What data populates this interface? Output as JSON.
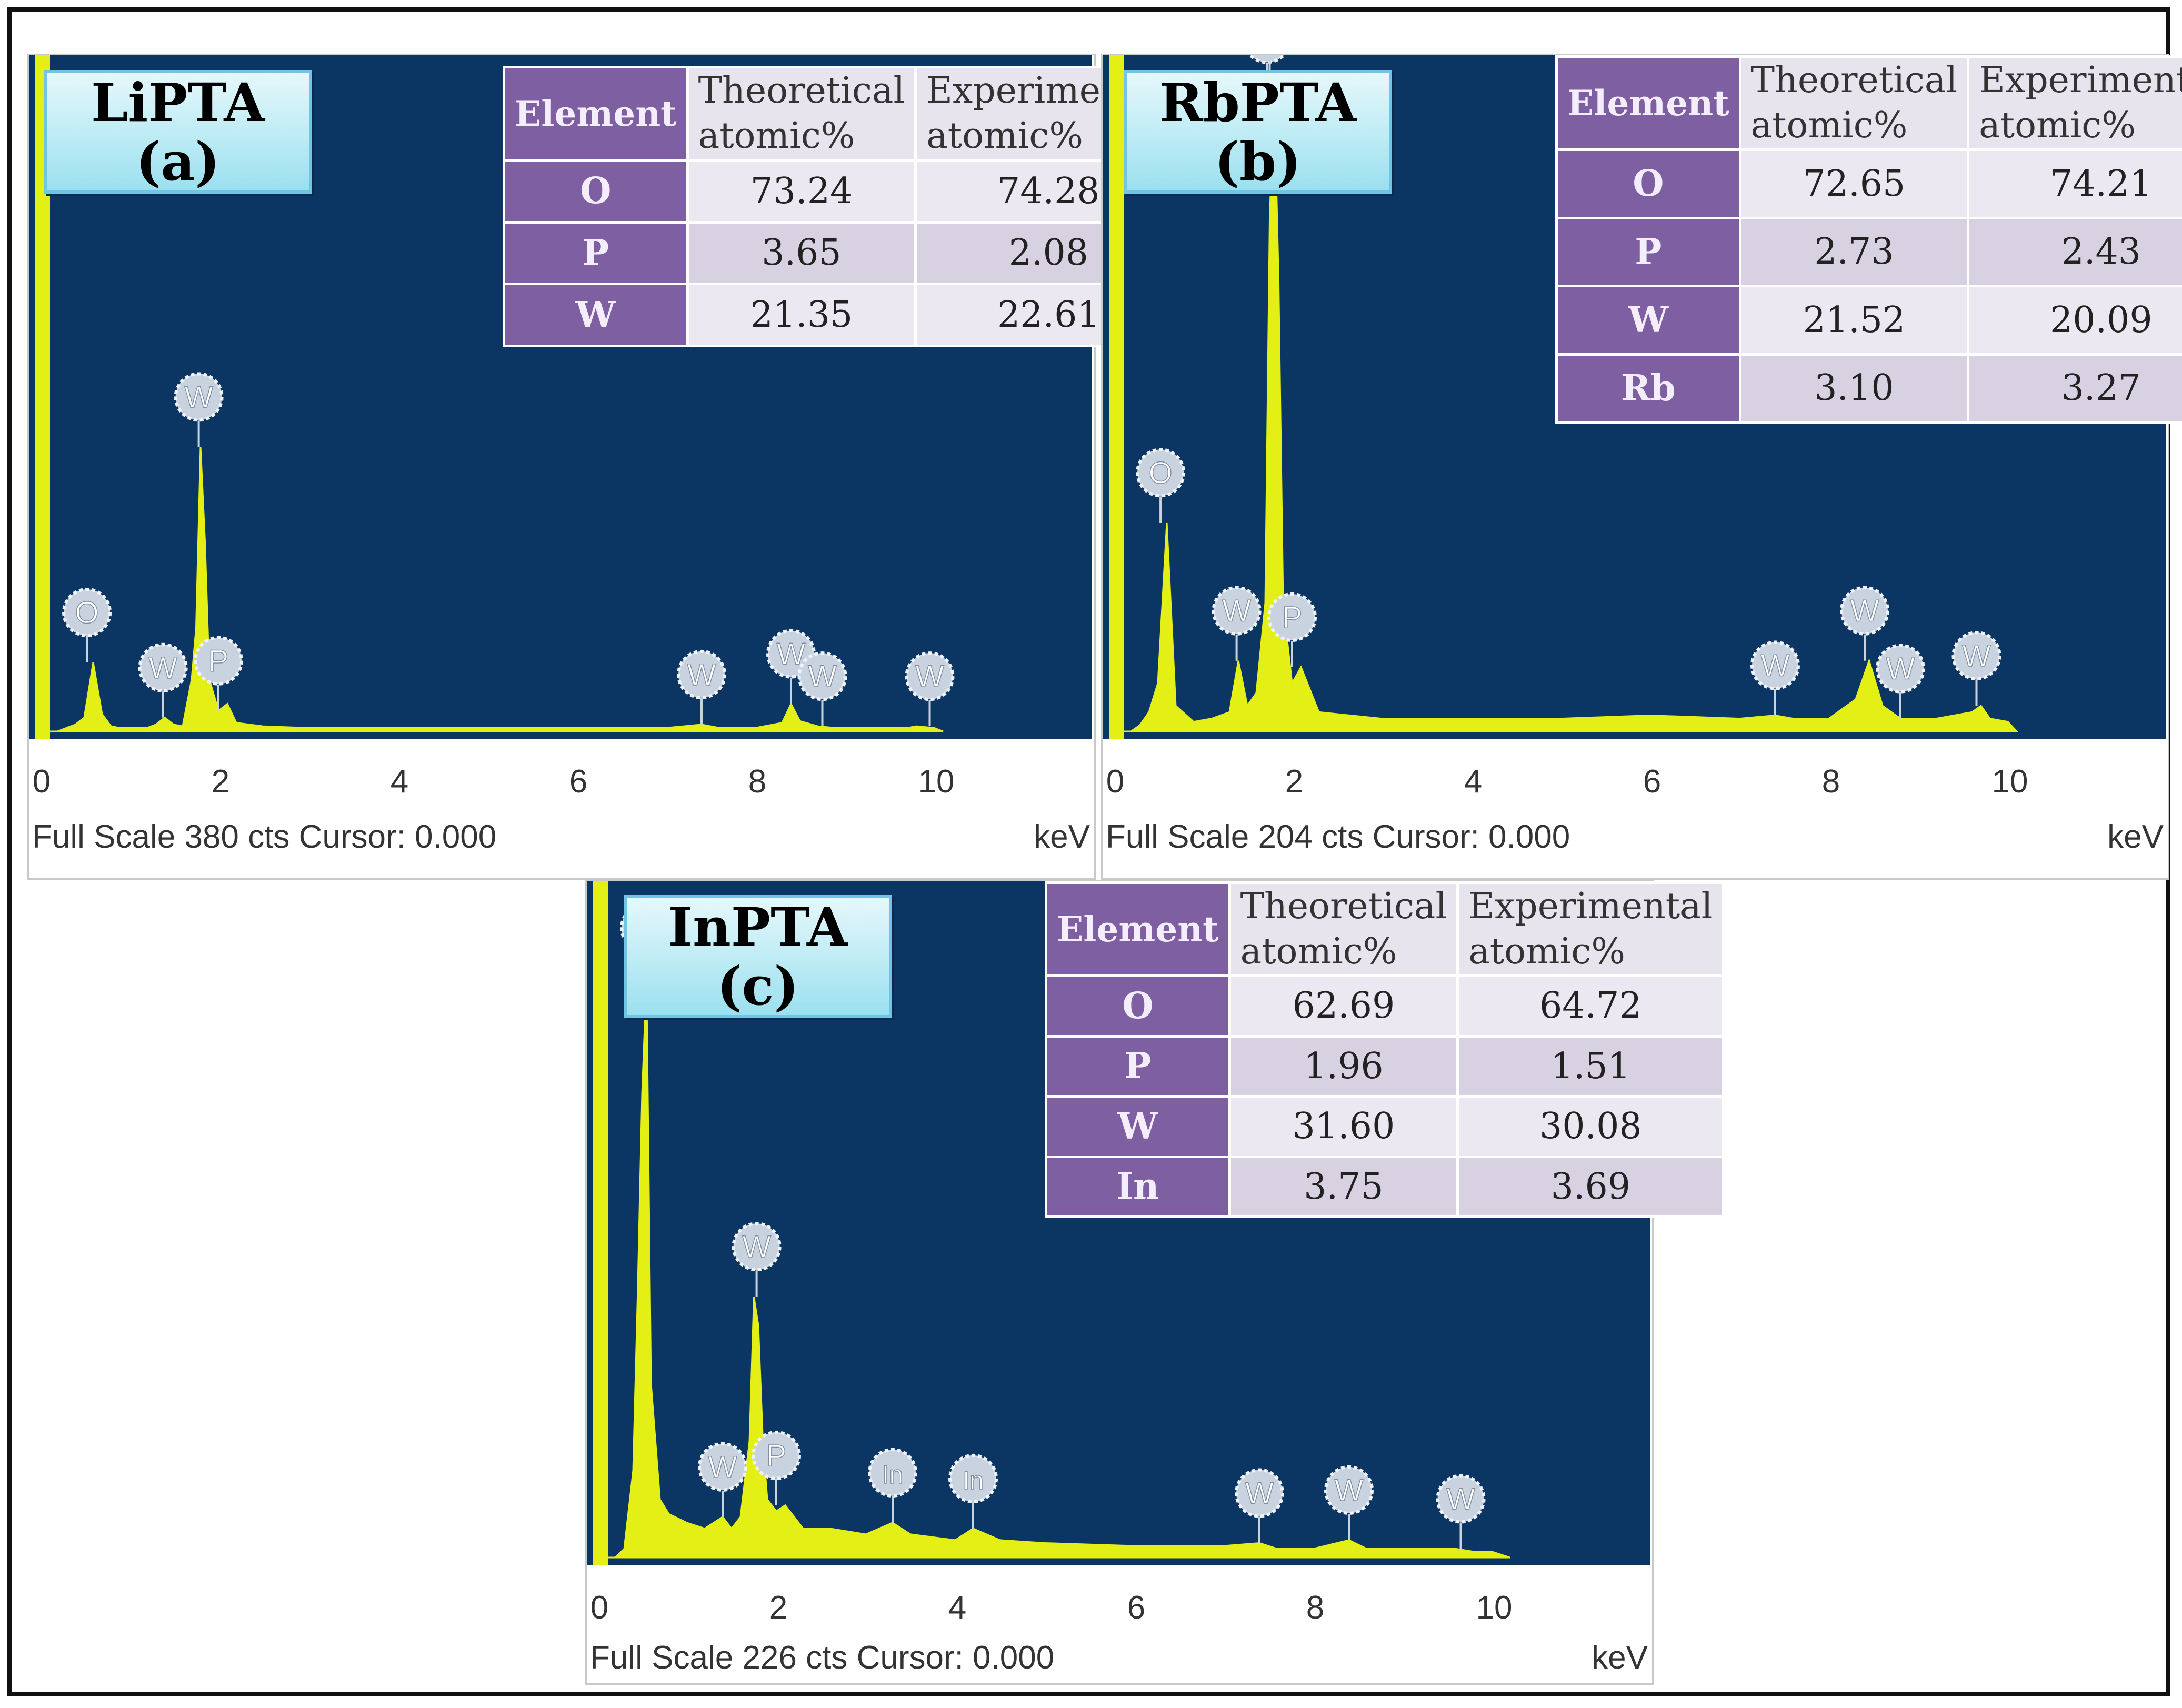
{
  "chart_data": [
    {
      "type": "table",
      "panel_title": "LiPTA",
      "panel_letter": "(a)",
      "xlabel": "keV",
      "xlim": [
        0,
        11.7
      ],
      "x_ticks": [
        "0",
        "2",
        "4",
        "6",
        "8",
        "10"
      ],
      "footer": "Full Scale 380 cts Cursor: 0.000",
      "table": {
        "headers": [
          "Element",
          "Theoretical atomic%",
          "Experimental atomic%"
        ],
        "rows": [
          [
            "O",
            "73.24",
            "74.28"
          ],
          [
            "P",
            "3.65",
            "2.08"
          ],
          [
            "W",
            "21.35",
            "22.61"
          ]
        ]
      },
      "series": [
        {
          "name": "spectrum",
          "x": [
            0.0,
            0.1,
            0.2,
            0.3,
            0.4,
            0.5,
            0.6,
            0.7,
            0.8,
            0.9,
            1.0,
            1.2,
            1.3,
            1.4,
            1.5,
            1.6,
            1.7,
            1.75,
            1.8,
            1.85,
            1.9,
            2.0,
            2.1,
            2.2,
            2.5,
            3.0,
            4.0,
            5.0,
            6.0,
            7.0,
            7.4,
            7.6,
            8.0,
            8.3,
            8.4,
            8.5,
            8.7,
            8.9,
            9.5,
            9.7,
            9.8,
            10.0,
            10.1
          ],
          "y": [
            0,
            0,
            0,
            2,
            4,
            8,
            40,
            10,
            3,
            2,
            2,
            2,
            4,
            8,
            4,
            3,
            30,
            60,
            165,
            110,
            30,
            12,
            16,
            5,
            3,
            2,
            2,
            2,
            2,
            2,
            4,
            2,
            2,
            5,
            16,
            6,
            3,
            2,
            2,
            2,
            3,
            2,
            0
          ]
        }
      ],
      "peak_labels": [
        {
          "el": "O",
          "kev": 0.53,
          "y": 40
        },
        {
          "el": "W",
          "kev": 1.38,
          "y": 8
        },
        {
          "el": "W",
          "kev": 1.78,
          "y": 165
        },
        {
          "el": "P",
          "kev": 2.0,
          "y": 12
        },
        {
          "el": "W",
          "kev": 7.4,
          "y": 4
        },
        {
          "el": "W",
          "kev": 8.4,
          "y": 16
        },
        {
          "el": "W",
          "kev": 8.75,
          "y": 3
        },
        {
          "el": "W",
          "kev": 9.95,
          "y": 3
        }
      ],
      "ylim": [
        0,
        380
      ]
    },
    {
      "type": "table",
      "panel_title": "RbPTA",
      "panel_letter": "(b)",
      "xlabel": "keV",
      "xlim": [
        0,
        11.7
      ],
      "x_ticks": [
        "0",
        "2",
        "4",
        "6",
        "8",
        "10"
      ],
      "footer": "Full Scale 204 cts Cursor: 0.000",
      "table": {
        "headers": [
          "Element",
          "Theoretical atomic%",
          "Experimental atomic%"
        ],
        "rows": [
          [
            "O",
            "72.65",
            "74.21"
          ],
          [
            "P",
            "2.73",
            "2.43"
          ],
          [
            "W",
            "21.52",
            "20.09"
          ],
          [
            "Rb",
            "3.10",
            "3.27"
          ]
        ]
      },
      "series": [
        {
          "name": "spectrum",
          "x": [
            0.0,
            0.2,
            0.3,
            0.4,
            0.5,
            0.6,
            0.7,
            0.9,
            1.1,
            1.3,
            1.4,
            1.5,
            1.6,
            1.7,
            1.75,
            1.8,
            1.85,
            1.9,
            2.0,
            2.1,
            2.3,
            3.0,
            4.0,
            5.0,
            6.0,
            7.0,
            7.4,
            7.6,
            8.0,
            8.3,
            8.45,
            8.6,
            8.8,
            9.2,
            9.6,
            9.7,
            9.8,
            10.0,
            10.1
          ],
          "y": [
            0,
            0,
            2,
            6,
            15,
            65,
            8,
            3,
            4,
            6,
            22,
            8,
            12,
            40,
            160,
            200,
            140,
            40,
            15,
            20,
            6,
            4,
            4,
            4,
            5,
            4,
            5,
            4,
            4,
            10,
            22,
            8,
            4,
            4,
            6,
            8,
            4,
            3,
            0
          ]
        }
      ],
      "peak_labels": [
        {
          "el": "O",
          "kev": 0.53,
          "y": 65
        },
        {
          "el": "W",
          "kev": 1.38,
          "y": 22
        },
        {
          "el": "Rb",
          "kev": 1.72,
          "y": 200
        },
        {
          "el": "W",
          "kev": 1.75,
          "y": 200
        },
        {
          "el": "P",
          "kev": 2.0,
          "y": 20
        },
        {
          "el": "W",
          "kev": 7.4,
          "y": 5
        },
        {
          "el": "W",
          "kev": 8.4,
          "y": 22
        },
        {
          "el": "W",
          "kev": 8.8,
          "y": 4
        },
        {
          "el": "W",
          "kev": 9.65,
          "y": 8
        }
      ],
      "ylim": [
        0,
        204
      ]
    },
    {
      "type": "table",
      "panel_title": "InPTA",
      "panel_letter": "(c)",
      "xlabel": "keV",
      "xlim": [
        0,
        11.7
      ],
      "x_ticks": [
        "0",
        "2",
        "4",
        "6",
        "8",
        "10"
      ],
      "footer": "Full Scale 226 cts Cursor: 0.000",
      "table": {
        "headers": [
          "Element",
          "Theoretical atomic%",
          "Experimental atomic%"
        ],
        "rows": [
          [
            "O",
            "62.69",
            "64.72"
          ],
          [
            "P",
            "1.96",
            "1.51"
          ],
          [
            "W",
            "31.60",
            "30.08"
          ],
          [
            "In",
            "3.75",
            "3.69"
          ]
        ]
      },
      "series": [
        {
          "name": "spectrum",
          "x": [
            0.0,
            0.2,
            0.3,
            0.4,
            0.45,
            0.5,
            0.55,
            0.6,
            0.7,
            0.8,
            1.0,
            1.2,
            1.4,
            1.5,
            1.6,
            1.7,
            1.75,
            1.8,
            1.85,
            1.9,
            2.0,
            2.1,
            2.3,
            2.6,
            3.0,
            3.3,
            3.5,
            4.0,
            4.2,
            4.5,
            5.0,
            6.0,
            7.0,
            7.4,
            7.6,
            8.0,
            8.4,
            8.6,
            9.0,
            9.6,
            9.8,
            10.0,
            10.2
          ],
          "y": [
            0,
            0,
            3,
            30,
            90,
            160,
            200,
            60,
            20,
            15,
            12,
            10,
            14,
            10,
            14,
            40,
            90,
            80,
            40,
            20,
            16,
            18,
            10,
            10,
            8,
            12,
            8,
            6,
            10,
            6,
            5,
            4,
            4,
            5,
            3,
            3,
            6,
            3,
            3,
            3,
            2,
            2,
            0
          ]
        }
      ],
      "peak_labels": [
        {
          "el": "O",
          "kev": 0.53,
          "y": 200
        },
        {
          "el": "W",
          "kev": 1.4,
          "y": 14
        },
        {
          "el": "W",
          "kev": 1.78,
          "y": 90
        },
        {
          "el": "P",
          "kev": 2.0,
          "y": 18
        },
        {
          "el": "In",
          "kev": 3.3,
          "y": 12
        },
        {
          "el": "In",
          "kev": 4.2,
          "y": 10
        },
        {
          "el": "W",
          "kev": 7.4,
          "y": 5
        },
        {
          "el": "W",
          "kev": 8.4,
          "y": 6
        },
        {
          "el": "W",
          "kev": 9.65,
          "y": 3
        }
      ],
      "ylim": [
        0,
        226
      ]
    }
  ],
  "colors": {
    "plot_bg": "#0b3563",
    "spectrum": "#e3ef15",
    "table_header": "#7e5fa2",
    "label_badge": "#c9d3e0"
  }
}
